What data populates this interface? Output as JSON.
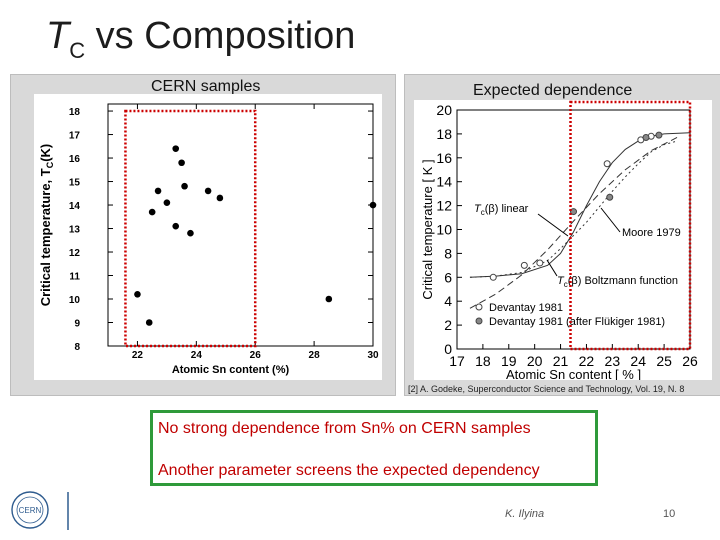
{
  "slide": {
    "title_t": "T",
    "title_sub": "C",
    "title_rest": " vs Composition",
    "left_label": "CERN samples",
    "right_label": "Expected dependence",
    "reference": "[2] A. Godeke, Superconductor Science and Technology,  Vol. 19, N. 8",
    "note_line1": "No strong dependence from Sn% on CERN samples",
    "note_line2": "Another parameter screens the expected dependency",
    "author": "K. Ilyina",
    "page_number": "10",
    "logo_text": "CERN",
    "colors": {
      "highlight": "#cc0000",
      "note_border": "#2e9a3a",
      "note_text": "#c00000"
    }
  },
  "chart_data": [
    {
      "type": "scatter",
      "title": "CERN samples",
      "xlabel": "Atomic Sn content (%)",
      "ylabel": "Critical temperature,  T",
      "ylabel_sub": "C",
      "ylabel_unit": "(K)",
      "xlim": [
        21,
        30
      ],
      "ylim": [
        8,
        18.3
      ],
      "xticks": [
        22,
        24,
        26,
        28,
        30
      ],
      "yticks": [
        8,
        9,
        10,
        11,
        12,
        13,
        14,
        15,
        16,
        17,
        18
      ],
      "grid": false,
      "points": [
        {
          "x": 22.0,
          "y": 10.2
        },
        {
          "x": 22.4,
          "y": 9.0
        },
        {
          "x": 22.5,
          "y": 13.7
        },
        {
          "x": 22.7,
          "y": 14.6
        },
        {
          "x": 23.0,
          "y": 14.1
        },
        {
          "x": 23.3,
          "y": 16.4
        },
        {
          "x": 23.5,
          "y": 15.8
        },
        {
          "x": 23.3,
          "y": 13.1
        },
        {
          "x": 23.6,
          "y": 14.8
        },
        {
          "x": 23.8,
          "y": 12.8
        },
        {
          "x": 24.4,
          "y": 14.6
        },
        {
          "x": 24.8,
          "y": 14.3
        },
        {
          "x": 28.5,
          "y": 10.0
        },
        {
          "x": 30.0,
          "y": 14.0
        }
      ],
      "highlight_range": [
        22,
        26
      ]
    },
    {
      "type": "line",
      "title": "Expected dependence",
      "xlabel": "Atomic Sn content [ % ]",
      "ylabel": "Critical temperature [ K ]",
      "xlim": [
        17,
        26
      ],
      "ylim": [
        0,
        20
      ],
      "xticks": [
        17,
        18,
        19,
        20,
        21,
        22,
        23,
        24,
        25,
        26
      ],
      "yticks": [
        0,
        2,
        4,
        6,
        8,
        10,
        12,
        14,
        16,
        18,
        20
      ],
      "grid": false,
      "series": [
        {
          "name": "Tc(β) linear",
          "style": "dashed",
          "x": [
            17.5,
            18.5,
            19.5,
            20.5,
            21.5,
            22.5,
            23.5,
            24.5,
            25.5
          ],
          "y": [
            3.4,
            4.6,
            6.2,
            8.3,
            10.7,
            13.0,
            15.0,
            16.6,
            17.7
          ]
        },
        {
          "name": "Tc(β) Boltzmann function",
          "style": "solid",
          "x": [
            17.5,
            18.5,
            19.5,
            20.5,
            21.0,
            21.5,
            22.0,
            22.5,
            23.0,
            23.5,
            24.0,
            24.5,
            25.0,
            26.0
          ],
          "y": [
            6.0,
            6.1,
            6.3,
            7.0,
            8.0,
            9.8,
            12.0,
            14.0,
            15.6,
            16.7,
            17.4,
            17.8,
            18.0,
            18.1
          ]
        },
        {
          "name": "Moore 1979",
          "style": "dotted",
          "x": [
            17.5,
            18.5,
            19.5,
            20.5,
            21.0,
            21.5,
            22.0,
            22.5,
            23.0,
            23.5,
            24.0,
            24.5,
            25.0,
            25.5
          ],
          "y": [
            6.0,
            6.1,
            6.4,
            7.4,
            8.4,
            9.5,
            10.6,
            11.9,
            13.2,
            14.4,
            15.5,
            16.5,
            17.1,
            17.4
          ]
        }
      ],
      "points_open": [
        {
          "x": 18.4,
          "y": 6.0
        },
        {
          "x": 19.6,
          "y": 7.0
        },
        {
          "x": 20.2,
          "y": 7.2
        },
        {
          "x": 22.8,
          "y": 15.5
        },
        {
          "x": 24.1,
          "y": 17.5
        },
        {
          "x": 24.5,
          "y": 17.8
        }
      ],
      "points_filled": [
        {
          "x": 21.5,
          "y": 11.5
        },
        {
          "x": 22.9,
          "y": 12.7
        },
        {
          "x": 24.3,
          "y": 17.7
        },
        {
          "x": 24.8,
          "y": 17.9
        }
      ],
      "annotations": {
        "linear_label": "T",
        "linear_label_rest": "(β) linear",
        "boltzmann_label": "T",
        "boltzmann_label_rest": "(β) Boltzmann function",
        "label_sub": "c",
        "moore_label": "Moore 1979"
      },
      "legend": [
        {
          "label": "Devantay 1981",
          "marker": "open"
        },
        {
          "label": "Devantay 1981 (after Flükiger 1981)",
          "marker": "filled"
        }
      ],
      "highlight_range": [
        21.5,
        26
      ]
    }
  ]
}
